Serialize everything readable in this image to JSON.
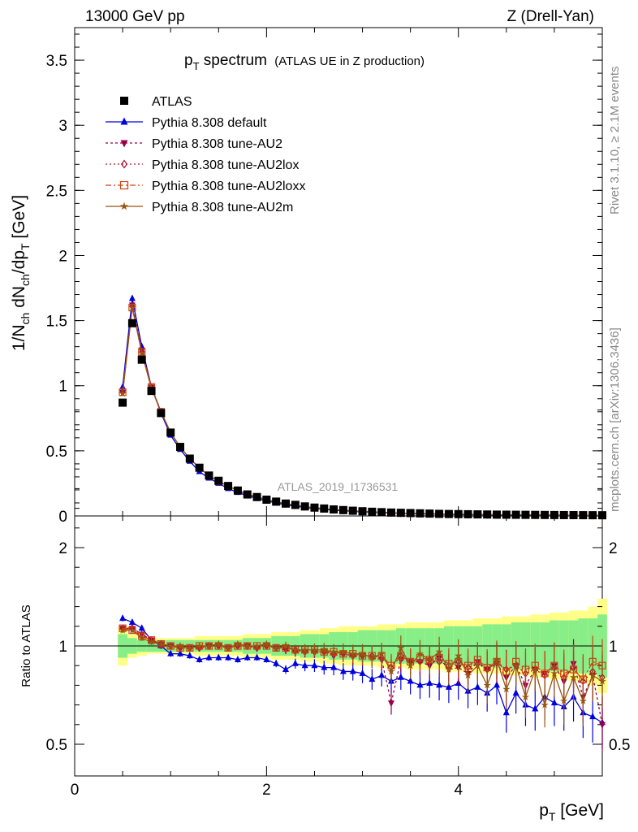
{
  "header": {
    "left": "13000 GeV pp",
    "right": "Z (Drell-Yan)"
  },
  "side_labels": {
    "rivet": "Rivet 3.1.10, ≥ 2.1M events",
    "mcplots": "mcplots.cern.ch [arXiv:1306.3436]"
  },
  "title": {
    "main": "p",
    "main_sub": "T",
    "main_rest": " spectrum",
    "small": "(ATLAS UE in Z production)"
  },
  "analysis_tag": "ATLAS_2019_I1736531",
  "ylabel_top": "1/N_ch dN_ch/dp_T [GeV]",
  "ylabel_bottom": "Ratio to ATLAS",
  "xlabel": "p_T [GeV]",
  "legend": [
    {
      "label": "ATLAS",
      "color": "#000000",
      "marker": "square",
      "dash": ""
    },
    {
      "label": "Pythia 8.308 default",
      "color": "#0000dd",
      "marker": "triangle-up",
      "dash": ""
    },
    {
      "label": "Pythia 8.308 tune-AU2",
      "color": "#990044",
      "marker": "triangle-down",
      "dash": "3,3"
    },
    {
      "label": "Pythia 8.308 tune-AU2lox",
      "color": "#aa1133",
      "marker": "diamond",
      "dash": "2,3"
    },
    {
      "label": "Pythia 8.308 tune-AU2loxx",
      "color": "#cc4411",
      "marker": "open-square",
      "dash": "7,3,2,3"
    },
    {
      "label": "Pythia 8.308 tune-AU2m",
      "color": "#995511",
      "marker": "star",
      "dash": ""
    }
  ],
  "chart_data": [
    {
      "type": "line",
      "panel": "main",
      "xlim": [
        0,
        5.5
      ],
      "ylim": [
        0,
        3.75
      ],
      "x_ticks": [
        "0",
        "2",
        "4"
      ],
      "y_ticks": [
        "0",
        "0.5",
        "1",
        "1.5",
        "2",
        "2.5",
        "3",
        "3.5"
      ],
      "x": [
        0.5,
        0.6,
        0.7,
        0.8,
        0.9,
        1.0,
        1.1,
        1.2,
        1.3,
        1.4,
        1.5,
        1.6,
        1.7,
        1.8,
        1.9,
        2.0,
        2.1,
        2.2,
        2.3,
        2.4,
        2.5,
        2.6,
        2.7,
        2.8,
        2.9,
        3.0,
        3.1,
        3.2,
        3.3,
        3.4,
        3.5,
        3.6,
        3.7,
        3.8,
        3.9,
        4.0,
        4.1,
        4.2,
        4.3,
        4.4,
        4.5,
        4.6,
        4.7,
        4.8,
        4.9,
        5.0,
        5.1,
        5.2,
        5.3,
        5.4,
        5.5
      ],
      "series": [
        {
          "name": "ATLAS",
          "values": [
            0.87,
            1.48,
            1.2,
            0.96,
            0.79,
            0.64,
            0.53,
            0.44,
            0.37,
            0.31,
            0.27,
            0.23,
            0.195,
            0.165,
            0.145,
            0.125,
            0.11,
            0.095,
            0.085,
            0.073,
            0.064,
            0.057,
            0.05,
            0.045,
            0.04,
            0.036,
            0.032,
            0.029,
            0.026,
            0.024,
            0.022,
            0.02,
            0.018,
            0.016,
            0.015,
            0.014,
            0.013,
            0.012,
            0.011,
            0.01,
            0.0095,
            0.009,
            0.0085,
            0.008,
            0.0075,
            0.007,
            0.0066,
            0.0062,
            0.0058,
            0.0055,
            0.0052
          ]
        },
        {
          "name": "Pythia 8.308 default",
          "values": [
            0.99,
            1.67,
            1.3,
            0.99,
            0.79,
            0.62,
            0.51,
            0.42,
            0.34,
            0.29,
            0.25,
            0.21,
            0.18,
            0.155,
            0.135,
            0.115,
            0.1,
            0.085,
            0.075,
            0.065,
            0.057,
            0.05,
            0.044,
            0.039,
            0.035,
            0.031,
            0.028,
            0.025,
            0.022,
            0.02,
            0.018,
            0.016,
            0.015,
            0.013,
            0.012,
            0.011,
            0.0105,
            0.0095,
            0.0088,
            0.0082,
            0.0076,
            0.0071,
            0.0066,
            0.0062,
            0.0058,
            0.0054,
            0.0051,
            0.0048,
            0.0045,
            0.0042,
            0.004
          ]
        },
        {
          "name": "Pythia 8.308 tune-AU2",
          "values": [
            0.95,
            1.62,
            1.27,
            0.99,
            0.8,
            0.64,
            0.53,
            0.44,
            0.37,
            0.31,
            0.265,
            0.23,
            0.195,
            0.165,
            0.145,
            0.125,
            0.108,
            0.093,
            0.082,
            0.071,
            0.062,
            0.055,
            0.048,
            0.043,
            0.038,
            0.034,
            0.03,
            0.027,
            0.024,
            0.022,
            0.02,
            0.018,
            0.016,
            0.015,
            0.013,
            0.012,
            0.011,
            0.0105,
            0.0097,
            0.009,
            0.0083,
            0.0077,
            0.0072,
            0.0068,
            0.0063,
            0.006,
            0.0056,
            0.0053,
            0.005,
            0.0047,
            0.0045
          ]
        },
        {
          "name": "Pythia 8.308 tune-AU2lox",
          "values": [
            0.95,
            1.61,
            1.26,
            0.99,
            0.8,
            0.64,
            0.53,
            0.44,
            0.37,
            0.31,
            0.265,
            0.228,
            0.195,
            0.166,
            0.144,
            0.125,
            0.108,
            0.094,
            0.082,
            0.071,
            0.062,
            0.055,
            0.048,
            0.043,
            0.038,
            0.034,
            0.031,
            0.027,
            0.025,
            0.022,
            0.02,
            0.018,
            0.017,
            0.015,
            0.014,
            0.013,
            0.012,
            0.011,
            0.01,
            0.0092,
            0.0085,
            0.0079,
            0.0074,
            0.0069,
            0.0065,
            0.0061,
            0.0057,
            0.0054,
            0.0051,
            0.0048,
            0.0046
          ]
        },
        {
          "name": "Pythia 8.308 tune-AU2loxx",
          "values": [
            0.95,
            1.6,
            1.26,
            0.99,
            0.8,
            0.64,
            0.53,
            0.44,
            0.37,
            0.31,
            0.265,
            0.228,
            0.196,
            0.167,
            0.145,
            0.125,
            0.109,
            0.094,
            0.082,
            0.072,
            0.063,
            0.055,
            0.049,
            0.043,
            0.039,
            0.035,
            0.031,
            0.028,
            0.025,
            0.022,
            0.02,
            0.018,
            0.017,
            0.015,
            0.014,
            0.013,
            0.012,
            0.011,
            0.01,
            0.0093,
            0.0086,
            0.008,
            0.0075,
            0.007,
            0.0065,
            0.0061,
            0.0058,
            0.0055,
            0.0052,
            0.0049,
            0.0046
          ]
        },
        {
          "name": "Pythia 8.308 tune-AU2m",
          "values": [
            0.94,
            1.6,
            1.25,
            0.98,
            0.8,
            0.64,
            0.53,
            0.44,
            0.37,
            0.31,
            0.266,
            0.229,
            0.196,
            0.167,
            0.145,
            0.126,
            0.109,
            0.094,
            0.082,
            0.072,
            0.063,
            0.055,
            0.049,
            0.043,
            0.039,
            0.035,
            0.031,
            0.028,
            0.025,
            0.022,
            0.02,
            0.018,
            0.017,
            0.015,
            0.014,
            0.013,
            0.012,
            0.011,
            0.01,
            0.0093,
            0.0086,
            0.008,
            0.0075,
            0.007,
            0.0065,
            0.0061,
            0.0058,
            0.0055,
            0.0052,
            0.0049,
            0.0046
          ]
        }
      ]
    },
    {
      "type": "line",
      "panel": "ratio",
      "xlim": [
        0,
        5.5
      ],
      "ylim": [
        0.35,
        2.35
      ],
      "x_ticks": [
        "0",
        "2",
        "4"
      ],
      "y_ticks_left": [
        "0.5",
        "1",
        "2"
      ],
      "y_ticks_right": [
        "0.5",
        "1",
        "2"
      ],
      "x": [
        0.5,
        0.6,
        0.7,
        0.8,
        0.9,
        1.0,
        1.1,
        1.2,
        1.3,
        1.4,
        1.5,
        1.6,
        1.7,
        1.8,
        1.9,
        2.0,
        2.1,
        2.2,
        2.3,
        2.4,
        2.5,
        2.6,
        2.7,
        2.8,
        2.9,
        3.0,
        3.1,
        3.2,
        3.3,
        3.4,
        3.5,
        3.6,
        3.7,
        3.8,
        3.9,
        4.0,
        4.1,
        4.2,
        4.3,
        4.4,
        4.5,
        4.6,
        4.7,
        4.8,
        4.9,
        5.0,
        5.1,
        5.2,
        5.3,
        5.4,
        5.5
      ],
      "band_inner": [
        0.06,
        0.04,
        0.03,
        0.03,
        0.03,
        0.03,
        0.03,
        0.03,
        0.03,
        0.03,
        0.03,
        0.03,
        0.03,
        0.04,
        0.04,
        0.04,
        0.05,
        0.05,
        0.05,
        0.06,
        0.06,
        0.06,
        0.07,
        0.07,
        0.07,
        0.08,
        0.08,
        0.08,
        0.08,
        0.09,
        0.09,
        0.09,
        0.09,
        0.09,
        0.1,
        0.1,
        0.1,
        0.1,
        0.11,
        0.11,
        0.11,
        0.12,
        0.12,
        0.12,
        0.12,
        0.13,
        0.13,
        0.13,
        0.14,
        0.14,
        0.16
      ],
      "band_outer": [
        0.1,
        0.06,
        0.05,
        0.04,
        0.04,
        0.04,
        0.04,
        0.04,
        0.05,
        0.05,
        0.05,
        0.05,
        0.05,
        0.06,
        0.06,
        0.06,
        0.07,
        0.07,
        0.07,
        0.08,
        0.08,
        0.09,
        0.09,
        0.1,
        0.1,
        0.1,
        0.1,
        0.11,
        0.11,
        0.11,
        0.12,
        0.12,
        0.12,
        0.12,
        0.13,
        0.13,
        0.13,
        0.14,
        0.14,
        0.14,
        0.15,
        0.15,
        0.15,
        0.16,
        0.16,
        0.17,
        0.17,
        0.18,
        0.18,
        0.2,
        0.24
      ],
      "series": [
        {
          "name": "Pythia 8.308 default",
          "values": [
            1.14,
            1.12,
            1.09,
            1.03,
            1.0,
            0.96,
            0.96,
            0.95,
            0.93,
            0.94,
            0.94,
            0.94,
            0.93,
            0.94,
            0.94,
            0.93,
            0.91,
            0.88,
            0.91,
            0.9,
            0.9,
            0.89,
            0.89,
            0.87,
            0.87,
            0.86,
            0.83,
            0.85,
            0.82,
            0.84,
            0.82,
            0.8,
            0.81,
            0.8,
            0.79,
            0.81,
            0.77,
            0.79,
            0.76,
            0.8,
            0.66,
            0.76,
            0.7,
            0.68,
            0.74,
            0.71,
            0.69,
            0.74,
            0.66,
            0.64,
            0.61
          ]
        },
        {
          "name": "Pythia 8.308 tune-AU2",
          "values": [
            1.09,
            1.09,
            1.06,
            1.03,
            1.01,
            1.0,
            0.99,
            0.99,
            0.99,
            1.0,
            1.0,
            0.99,
            1.0,
            1.0,
            0.99,
            1.0,
            0.99,
            0.98,
            0.97,
            0.97,
            0.97,
            0.97,
            0.95,
            0.96,
            0.95,
            0.95,
            0.94,
            0.93,
            0.71,
            0.93,
            0.92,
            0.92,
            0.9,
            0.94,
            0.88,
            0.89,
            0.86,
            0.92,
            0.88,
            0.91,
            0.84,
            0.9,
            0.8,
            0.88,
            0.86,
            0.9,
            0.82,
            0.91,
            0.74,
            0.85,
            0.6
          ]
        },
        {
          "name": "Pythia 8.308 tune-AU2lox",
          "values": [
            1.09,
            1.09,
            1.05,
            1.03,
            1.01,
            1.0,
            0.99,
            0.99,
            0.99,
            1.0,
            1.0,
            0.99,
            1.0,
            1.0,
            0.99,
            1.0,
            0.99,
            0.99,
            0.98,
            0.97,
            0.97,
            0.97,
            0.96,
            0.96,
            0.95,
            0.95,
            0.95,
            0.94,
            0.89,
            0.95,
            0.92,
            0.92,
            0.93,
            0.92,
            0.9,
            0.92,
            0.89,
            0.91,
            0.88,
            0.92,
            0.88,
            0.9,
            0.86,
            0.88,
            0.85,
            0.89,
            0.84,
            0.89,
            0.82,
            0.87,
            0.84
          ]
        },
        {
          "name": "Pythia 8.308 tune-AU2loxx",
          "values": [
            1.09,
            1.08,
            1.05,
            1.03,
            1.01,
            1.0,
            0.99,
            0.99,
            1.0,
            1.0,
            1.0,
            0.99,
            1.0,
            1.0,
            1.0,
            1.0,
            0.99,
            0.99,
            0.98,
            0.98,
            0.98,
            0.97,
            0.97,
            0.96,
            0.96,
            0.95,
            0.95,
            0.95,
            0.9,
            0.95,
            0.92,
            0.94,
            0.93,
            0.94,
            0.91,
            0.92,
            0.9,
            0.93,
            0.89,
            0.92,
            0.87,
            0.92,
            0.88,
            0.9,
            0.86,
            0.9,
            0.86,
            0.88,
            0.83,
            0.92,
            0.9
          ]
        },
        {
          "name": "Pythia 8.308 tune-AU2m",
          "values": [
            1.08,
            1.08,
            1.04,
            1.02,
            1.01,
            1.0,
            1.0,
            0.99,
            1.0,
            1.0,
            1.01,
            0.99,
            1.01,
            1.0,
            1.0,
            1.01,
            0.99,
            1.0,
            0.98,
            0.98,
            0.98,
            0.98,
            0.97,
            0.97,
            0.96,
            0.96,
            0.94,
            0.96,
            0.87,
            0.99,
            0.9,
            0.96,
            0.93,
            0.97,
            0.88,
            0.95,
            0.85,
            0.9,
            0.8,
            0.93,
            0.78,
            0.9,
            0.74,
            0.88,
            0.7,
            0.86,
            0.72,
            0.84,
            0.72,
            0.85,
            0.82
          ]
        }
      ]
    }
  ]
}
